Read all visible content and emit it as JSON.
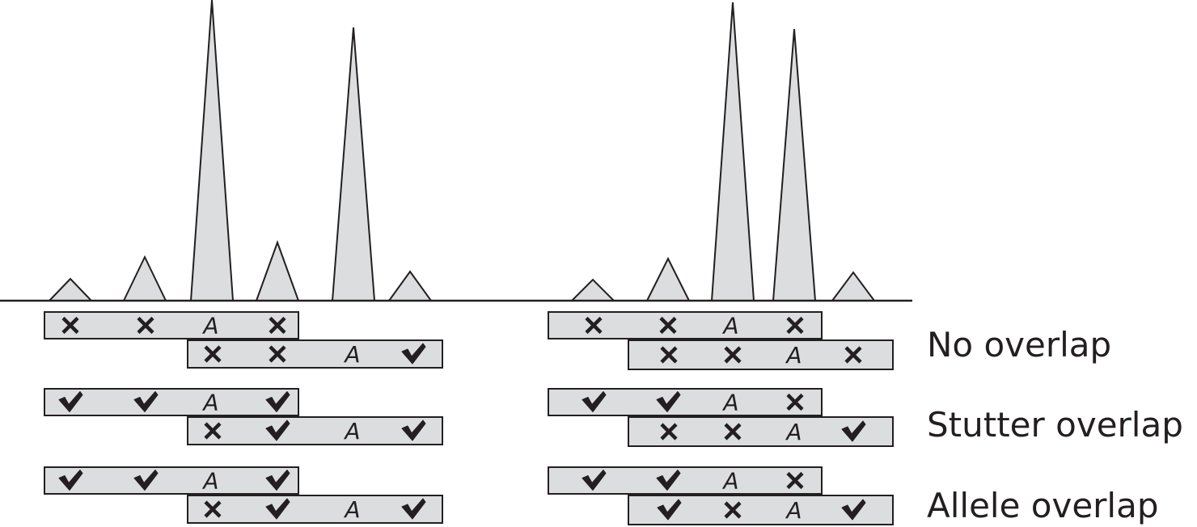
{
  "colors": {
    "fill": "#dcdddf",
    "stroke": "#231f20",
    "background": "#ffffff"
  },
  "row_labels": [
    "No overlap",
    "Stutter overlap",
    "Allele overlap"
  ],
  "panels": [
    {
      "peaks": [
        {
          "kind": "small"
        },
        {
          "kind": "medium"
        },
        {
          "kind": "tall"
        },
        {
          "kind": "medium"
        },
        {
          "kind": "tall"
        },
        {
          "kind": "small"
        }
      ],
      "rows": [
        {
          "label": "No overlap",
          "first": [
            "cross",
            "cross",
            "A",
            "cross"
          ],
          "second": [
            "cross",
            "cross",
            "A",
            "check"
          ]
        },
        {
          "label": "Stutter overlap",
          "first": [
            "check",
            "check",
            "A",
            "check"
          ],
          "second": [
            "cross",
            "check",
            "A",
            "check"
          ]
        },
        {
          "label": "Allele overlap",
          "first": [
            "check",
            "check",
            "A",
            "check"
          ],
          "second": [
            "cross",
            "check",
            "A",
            "check"
          ]
        }
      ]
    },
    {
      "peaks": [
        {
          "kind": "small"
        },
        {
          "kind": "medium"
        },
        {
          "kind": "tall"
        },
        {
          "kind": "tall"
        },
        {
          "kind": "small"
        }
      ],
      "rows": [
        {
          "label": "No overlap",
          "first": [
            "cross",
            "cross",
            "A",
            "cross"
          ],
          "second": [
            "cross",
            "cross",
            "A",
            "cross"
          ]
        },
        {
          "label": "Stutter overlap",
          "first": [
            "check",
            "check",
            "A",
            "cross"
          ],
          "second": [
            "cross",
            "cross",
            "A",
            "check"
          ]
        },
        {
          "label": "Allele overlap",
          "first": [
            "check",
            "check",
            "A",
            "cross"
          ],
          "second": [
            "check",
            "cross",
            "A",
            "check"
          ]
        }
      ]
    }
  ]
}
